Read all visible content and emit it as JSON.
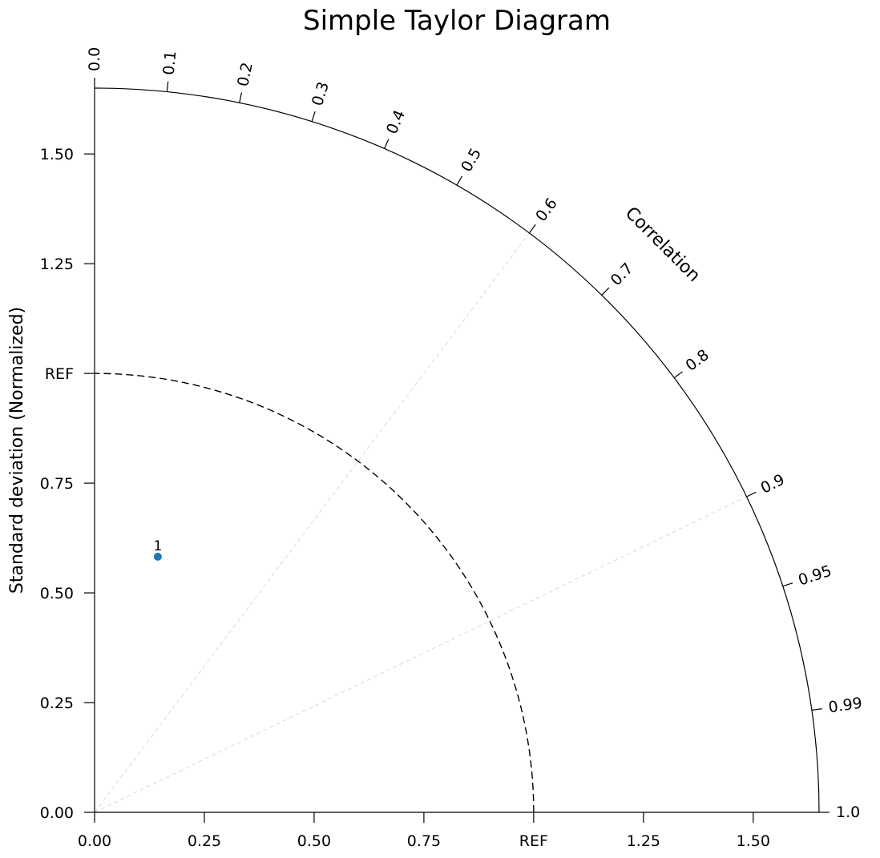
{
  "chart_data": {
    "type": "scatter",
    "title": "Simple Taylor Diagram",
    "ylabel": "Standard deviation (Normalized)",
    "correlation_label": "Correlation",
    "std_range": [
      0,
      1.65
    ],
    "reference_std": 1.0,
    "reference_label": "REF",
    "std_ticks": [
      "0.00",
      "0.25",
      "0.50",
      "0.75",
      "REF",
      "1.25",
      "1.50"
    ],
    "std_tick_values": [
      0,
      0.25,
      0.5,
      0.75,
      1.0,
      1.25,
      1.5
    ],
    "correlation_ticks": [
      "0.0",
      "0.1",
      "0.2",
      "0.3",
      "0.4",
      "0.5",
      "0.6",
      "0.7",
      "0.8",
      "0.9",
      "0.95",
      "0.99",
      "1.0"
    ],
    "correlation_tick_values": [
      0.0,
      0.1,
      0.2,
      0.3,
      0.4,
      0.5,
      0.6,
      0.7,
      0.8,
      0.9,
      0.95,
      0.99,
      1.0
    ],
    "correlation_gridlines": [
      0.6,
      0.9
    ],
    "points": [
      {
        "label": "1",
        "std": 0.6,
        "correlation": 0.24,
        "color": "#1f77b4"
      }
    ]
  }
}
